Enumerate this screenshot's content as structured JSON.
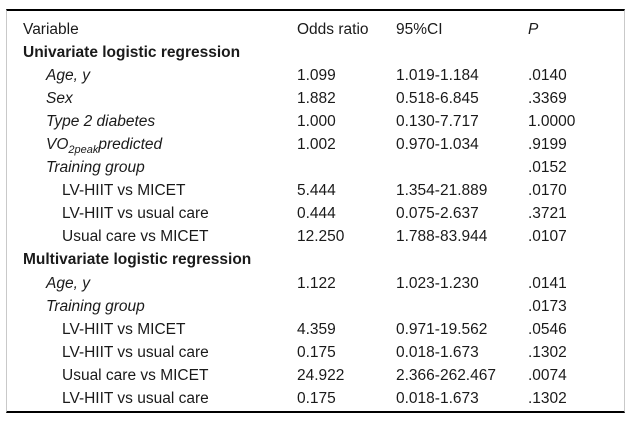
{
  "table": {
    "columns": [
      "Variable",
      "Odds ratio",
      "95%CI",
      "P"
    ],
    "rows": [
      {
        "label": "Univariate logistic regression"
      },
      {
        "label": "Age, y",
        "or": "1.099",
        "ci": "1.019-1.184",
        "p": ".0140"
      },
      {
        "label": "Sex",
        "or": "1.882",
        "ci": "0.518-6.845",
        "p": ".3369"
      },
      {
        "label": "Type 2 diabetes",
        "or": "1.000",
        "ci": "0.130-7.717",
        "p": "1.0000"
      },
      {
        "label_pre": "VO",
        "label_sub": "2peak",
        "label_post": "predicted",
        "or": "1.002",
        "ci": "0.970-1.034",
        "p": ".9199"
      },
      {
        "label": "Training group",
        "p": ".0152"
      },
      {
        "label": "LV-HIIT vs MICET",
        "or": "5.444",
        "ci": "1.354-21.889",
        "p": ".0170"
      },
      {
        "label": "LV-HIIT vs usual care",
        "or": "0.444",
        "ci": "0.075-2.637",
        "p": ".3721"
      },
      {
        "label": "Usual care vs MICET",
        "or": "12.250",
        "ci": "1.788-83.944",
        "p": ".0107"
      },
      {
        "label": "Multivariate logistic regression"
      },
      {
        "label": "Age, y",
        "or": "1.122",
        "ci": "1.023-1.230",
        "p": ".0141"
      },
      {
        "label": "Training group",
        "p": ".0173"
      },
      {
        "label": "LV-HIIT vs MICET",
        "or": "4.359",
        "ci": "0.971-19.562",
        "p": ".0546"
      },
      {
        "label": "LV-HIIT vs usual care",
        "or": "0.175",
        "ci": "0.018-1.673",
        "p": ".1302"
      },
      {
        "label": "Usual care vs MICET",
        "or": "24.922",
        "ci": "2.366-262.467",
        "p": ".0074"
      },
      {
        "label": "LV-HIIT vs usual care",
        "or": "0.175",
        "ci": "0.018-1.673",
        "p": ".1302"
      }
    ]
  }
}
